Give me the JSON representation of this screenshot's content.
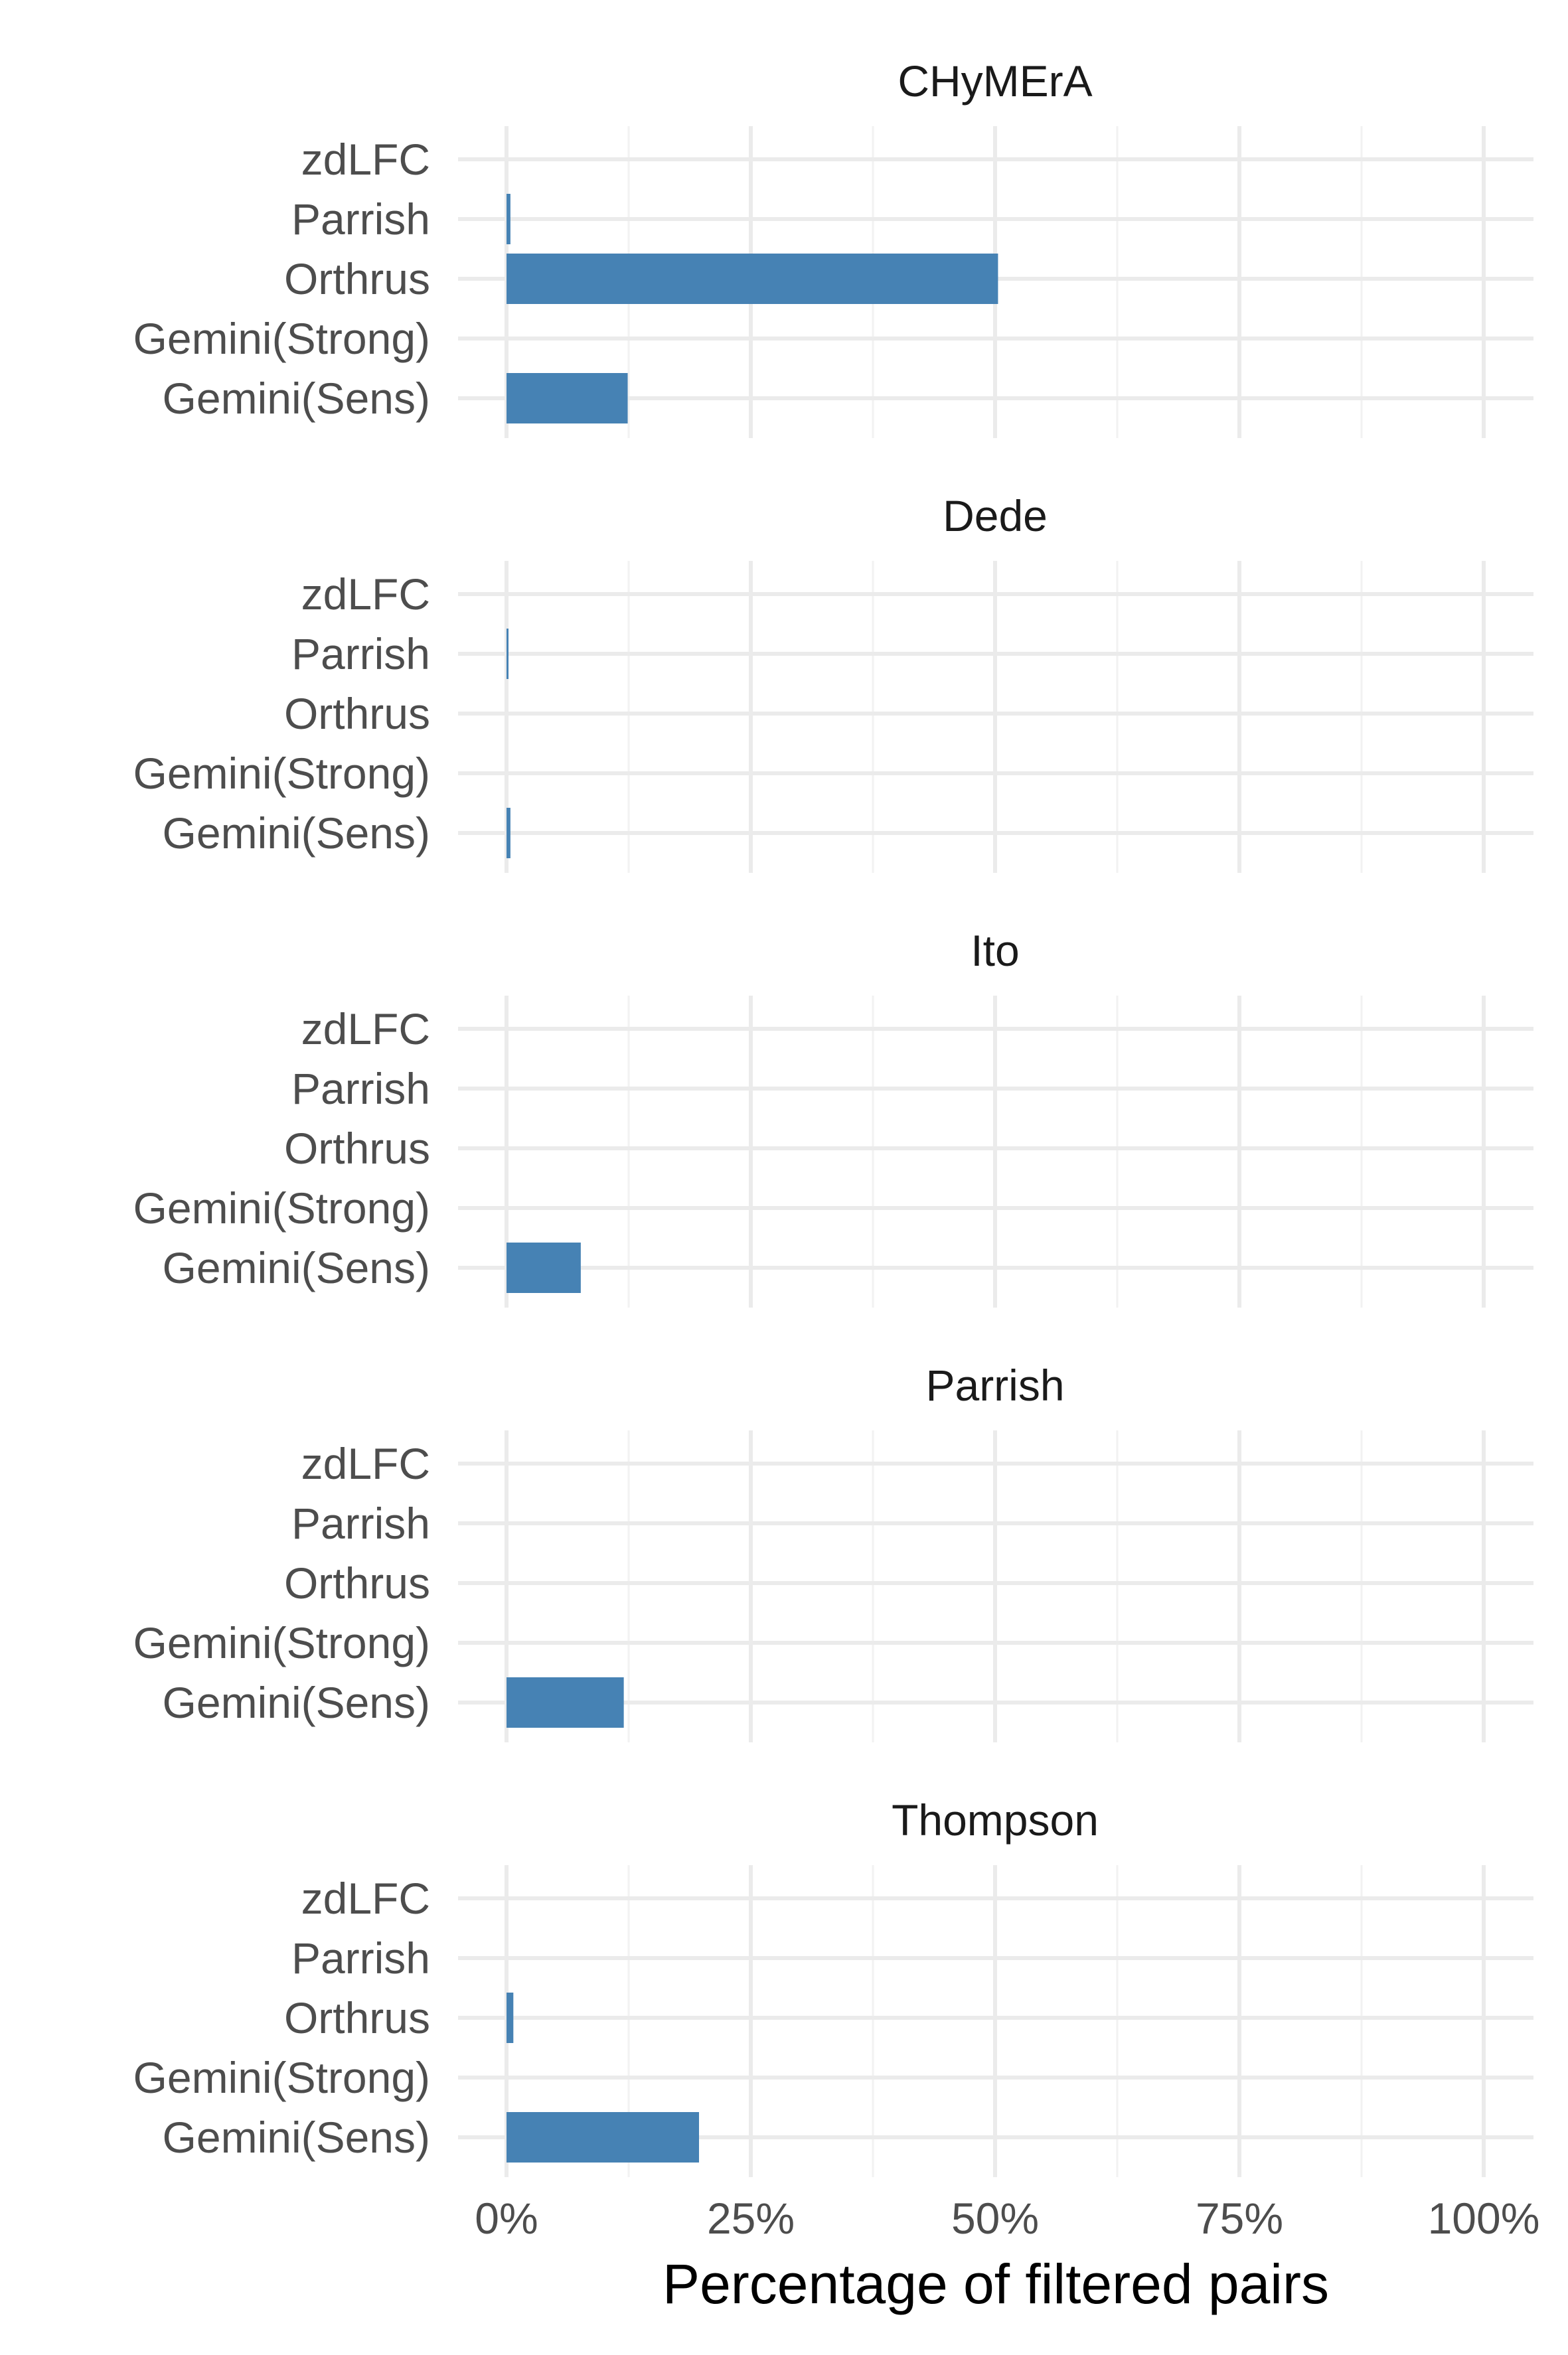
{
  "chart_data": {
    "type": "bar",
    "orientation": "horizontal",
    "facet": "vertical",
    "xlabel": "Percentage of filtered pairs",
    "ylabel": "",
    "xlim": [
      0,
      100
    ],
    "x_ticks": [
      "0%",
      "25%",
      "50%",
      "75%",
      "100%"
    ],
    "x_tick_values": [
      0,
      25,
      50,
      75,
      100
    ],
    "grid": true,
    "legend": "none",
    "bar_color": "#4682B4",
    "categories": [
      "zdLFC",
      "Parrish",
      "Orthrus",
      "Gemini(Strong)",
      "Gemini(Sens)"
    ],
    "panels": [
      {
        "title": "CHyMErA",
        "values": [
          0,
          0.4,
          50.3,
          0,
          12.4
        ]
      },
      {
        "title": "Dede",
        "values": [
          0,
          0.2,
          0,
          0,
          0.4
        ]
      },
      {
        "title": "Ito",
        "values": [
          0,
          0,
          0,
          0,
          7.6
        ]
      },
      {
        "title": "Parrish",
        "values": [
          0,
          0,
          0,
          0,
          12.0
        ]
      },
      {
        "title": "Thompson",
        "values": [
          0,
          0,
          0.7,
          0,
          19.7
        ]
      }
    ]
  }
}
